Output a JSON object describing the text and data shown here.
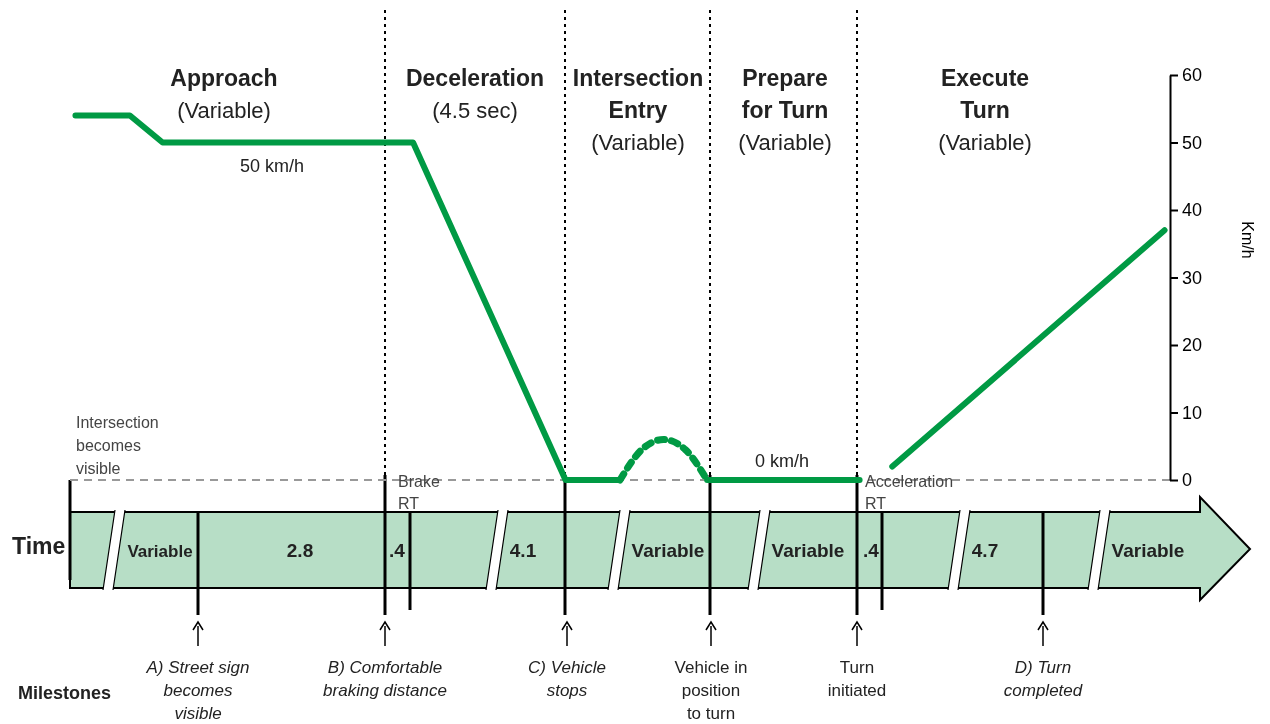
{
  "chart_data": {
    "type": "line",
    "ylabel": "Km/h",
    "ylim": [
      0,
      60
    ],
    "yticks": [
      0,
      10,
      20,
      30,
      40,
      50,
      60
    ],
    "marker": "none",
    "grid": false,
    "categories": [
      null,
      null,
      null,
      null,
      null,
      null,
      null,
      null,
      null,
      null,
      null,
      null,
      null,
      null,
      null,
      null,
      null,
      null,
      null,
      null,
      null,
      null,
      null,
      null,
      null,
      null,
      null,
      null,
      null,
      null,
      null,
      null,
      null,
      null,
      null,
      null,
      null,
      null,
      null,
      null,
      null,
      null,
      null,
      null,
      null,
      null,
      null,
      null,
      null,
      null,
      null,
      null,
      null,
      null,
      null,
      null,
      null,
      null,
      null,
      null,
      null,
      null,
      null,
      null,
      null,
      null,
      null,
      null,
      null,
      null,
      null,
      null,
      null,
      null,
      null,
      null,
      null,
      null,
      null,
      null,
      null,
      null,
      null,
      null,
      null,
      null,
      null,
      null,
      null,
      null,
      null,
      null,
      null,
      null,
      null,
      null,
      null,
      null,
      null,
      null,
      null
    ],
    "series": [
      {
        "color": "#009a44",
        "line_style": "solid",
        "values": [
          54,
          null,
          null,
          null,
          null,
          54,
          null,
          null,
          50,
          null,
          null,
          null,
          null,
          null,
          null,
          null,
          null,
          null,
          null,
          null,
          null,
          null,
          null,
          null,
          null,
          null,
          null,
          null,
          null,
          null,
          null,
          50,
          null,
          null,
          null,
          null,
          null,
          null,
          null,
          null,
          null,
          null,
          null,
          null,
          null,
          0,
          null,
          null,
          null,
          null,
          0,
          null,
          null,
          null,
          null,
          null,
          null,
          null,
          null,
          null,
          null,
          null,
          null,
          null,
          null,
          null,
          null,
          null,
          null,
          null,
          null,
          null,
          null,
          null,
          null,
          null,
          null,
          null,
          null,
          null,
          null,
          null,
          null,
          null,
          null,
          null,
          null,
          null,
          null,
          null,
          null,
          null,
          null,
          null,
          null,
          null,
          null,
          null,
          null,
          null,
          null
        ]
      },
      {
        "color": "#009a44",
        "line_style": "dotted",
        "values": [
          null,
          null,
          null,
          null,
          null,
          null,
          null,
          null,
          null,
          null,
          null,
          null,
          null,
          null,
          null,
          null,
          null,
          null,
          null,
          null,
          null,
          null,
          null,
          null,
          null,
          null,
          null,
          null,
          null,
          null,
          null,
          null,
          null,
          null,
          null,
          null,
          null,
          null,
          null,
          null,
          null,
          null,
          null,
          null,
          null,
          null,
          null,
          null,
          null,
          null,
          0,
          null,
          4.5,
          null,
          6,
          null,
          4.5,
          null,
          0,
          null,
          null,
          null,
          null,
          null,
          null,
          null,
          null,
          null,
          null,
          null,
          null,
          null,
          null,
          null,
          null,
          null,
          null,
          null,
          null,
          null,
          null,
          null,
          null,
          null,
          null,
          null,
          null,
          null,
          null,
          null,
          null,
          null,
          null,
          null,
          null,
          null,
          null,
          null,
          null,
          null,
          null
        ]
      },
      {
        "color": "#009a44",
        "line_style": "solid",
        "values": [
          null,
          null,
          null,
          null,
          null,
          null,
          null,
          null,
          null,
          null,
          null,
          null,
          null,
          null,
          null,
          null,
          null,
          null,
          null,
          null,
          null,
          null,
          null,
          null,
          null,
          null,
          null,
          null,
          null,
          null,
          null,
          null,
          null,
          null,
          null,
          null,
          null,
          null,
          null,
          null,
          null,
          null,
          null,
          null,
          null,
          null,
          null,
          null,
          null,
          null,
          null,
          null,
          null,
          null,
          null,
          null,
          null,
          null,
          0,
          null,
          null,
          null,
          null,
          null,
          null,
          null,
          null,
          null,
          null,
          null,
          null,
          null,
          0,
          null,
          null,
          null,
          null,
          null,
          null,
          null,
          null,
          null,
          null,
          null,
          null,
          null,
          null,
          null,
          null,
          null,
          null,
          null,
          null,
          null,
          null,
          null,
          null,
          null,
          null,
          null,
          null
        ]
      },
      {
        "color": "#009a44",
        "line_style": "solid",
        "values": [
          null,
          null,
          null,
          null,
          null,
          null,
          null,
          null,
          null,
          null,
          null,
          null,
          null,
          null,
          null,
          null,
          null,
          null,
          null,
          null,
          null,
          null,
          null,
          null,
          null,
          null,
          null,
          null,
          null,
          null,
          null,
          null,
          null,
          null,
          null,
          null,
          null,
          null,
          null,
          null,
          null,
          null,
          null,
          null,
          null,
          null,
          null,
          null,
          null,
          null,
          null,
          null,
          null,
          null,
          null,
          null,
          null,
          null,
          null,
          null,
          null,
          null,
          null,
          null,
          null,
          null,
          null,
          null,
          null,
          null,
          null,
          null,
          null,
          null,
          null,
          2,
          null,
          null,
          null,
          null,
          null,
          null,
          null,
          null,
          null,
          null,
          null,
          null,
          null,
          null,
          null,
          null,
          null,
          null,
          null,
          null,
          null,
          null,
          null,
          null,
          37
        ]
      }
    ],
    "ref_lines": [
      {
        "axis": "y",
        "value": 0,
        "line_style": "dashed",
        "color": "#999999"
      }
    ],
    "annotations": [
      "Approach",
      "(Variable)",
      "Deceleration",
      "(4.5 sec)",
      "Intersection\nEntry",
      "(Variable)",
      "Prepare\nfor Turn",
      "(Variable)",
      "Execute\nTurn",
      "(Variable)",
      "50 km/h",
      "0 km/h",
      "Intersection\nbecomes\nvisible",
      "Brake\nRT",
      "Acceleration\nRT",
      "Time",
      "Variable",
      "2.8",
      ".4",
      "4.1",
      "Variable",
      "Variable",
      ".4",
      "4.7",
      "Variable",
      "A) Street sign\nbecomes\nvisible",
      "B) Comfortable\nbraking distance",
      "C) Vehicle\nstops",
      "Vehicle in\nposition\nto turn",
      "Turn\ninitiated",
      "D) Turn\ncompleted",
      "Milestones"
    ]
  }
}
